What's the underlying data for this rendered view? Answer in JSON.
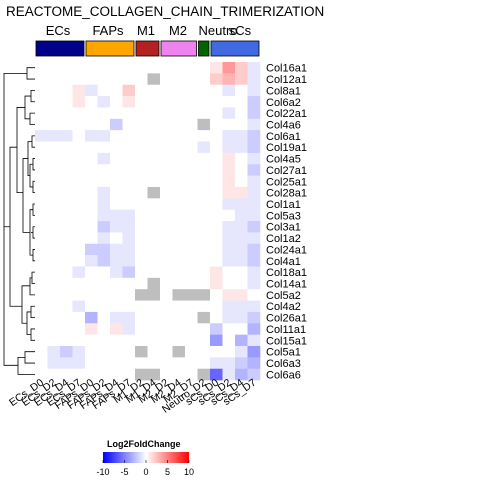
{
  "chart_data": {
    "type": "heatmap",
    "title": "REACTOME_COLLAGEN_CHAIN_TRIMERIZATION",
    "groups": [
      {
        "name": "ECs",
        "color": "#00008B",
        "span": [
          0,
          4
        ]
      },
      {
        "name": "FAPs",
        "color": "#FFA500",
        "span": [
          4,
          8
        ]
      },
      {
        "name": "M1",
        "color": "#B22222",
        "span": [
          8,
          10
        ]
      },
      {
        "name": "M2",
        "color": "#EE82EE",
        "span": [
          10,
          13
        ]
      },
      {
        "name": "Neutro",
        "color": "#006400",
        "span": [
          13,
          14
        ]
      },
      {
        "name": "sCs",
        "color": "#4169E1",
        "span": [
          14,
          18
        ]
      }
    ],
    "columns": [
      "ECs_D0",
      "ECs_D2",
      "ECs_D4",
      "ECs_D7",
      "FAPs_D0",
      "FAPs_D2",
      "FAPs_D4",
      "FAPs_D7",
      "M1_D2",
      "M1_D4",
      "M2_D2",
      "M2_D4",
      "M2_D7",
      "Neutro_D2",
      "sCs_D0",
      "sCs_D2",
      "sCs_D4",
      "sCs_D7"
    ],
    "rows": [
      "Col16a1",
      "Col12a1",
      "Col8a1",
      "Col6a2",
      "Col22a1",
      "Col4a6",
      "Col6a1",
      "Col19a1",
      "Col4a5",
      "Col27a1",
      "Col25a1",
      "Col28a1",
      "Col1a1",
      "Col5a3",
      "Col3a1",
      "Col1a2",
      "Col24a1",
      "Col4a1",
      "Col18a1",
      "Col14a1",
      "Col5a2",
      "Col4a2",
      "Col26a1",
      "Col11a1",
      "Col15a1",
      "Col5a1",
      "Col6a3",
      "Col6a6"
    ],
    "values": [
      [
        0,
        0,
        0,
        0,
        0,
        0,
        0,
        0,
        0,
        0,
        0,
        0,
        0,
        0,
        1,
        4,
        2,
        -1
      ],
      [
        0,
        0,
        0,
        0,
        0,
        0,
        0,
        0,
        0,
        "NA",
        0,
        0,
        0,
        0,
        2,
        3,
        2,
        -1
      ],
      [
        0,
        0,
        0,
        1,
        -1,
        0,
        0,
        2,
        0,
        0,
        0,
        0,
        0,
        0,
        0,
        -1,
        0,
        -1
      ],
      [
        0,
        0,
        0,
        1,
        0,
        -1,
        0,
        1,
        0,
        0,
        0,
        0,
        0,
        0,
        0,
        0,
        0,
        -2
      ],
      [
        0,
        0,
        0,
        0,
        0,
        0,
        0,
        0,
        0,
        0,
        0,
        0,
        0,
        0,
        0,
        -1,
        0,
        -2
      ],
      [
        0,
        0,
        0,
        0,
        0,
        0,
        -2,
        0,
        0,
        0,
        0,
        0,
        0,
        "NA",
        0,
        0,
        0,
        -1
      ],
      [
        -1,
        -1,
        -1,
        0,
        -1,
        -1,
        0,
        0,
        0,
        0,
        0,
        0,
        0,
        0,
        0,
        -1,
        -1,
        -2
      ],
      [
        0,
        0,
        0,
        0,
        0,
        0,
        0,
        0,
        0,
        0,
        0,
        0,
        0,
        -1,
        0,
        -1,
        -1,
        -2
      ],
      [
        0,
        0,
        0,
        0,
        0,
        -1,
        0,
        0,
        0,
        0,
        0,
        0,
        0,
        0,
        0,
        1,
        0,
        -1
      ],
      [
        0,
        0,
        0,
        0,
        0,
        0,
        0,
        0,
        0,
        0,
        0,
        0,
        0,
        0,
        0,
        1,
        0,
        -2
      ],
      [
        0,
        0,
        0,
        0,
        0,
        0,
        0,
        0,
        0,
        0,
        0,
        0,
        0,
        0,
        0,
        1,
        0,
        -1
      ],
      [
        0,
        0,
        0,
        0,
        0,
        -1,
        0,
        0,
        0,
        "NA",
        0,
        0,
        0,
        0,
        0,
        1,
        1,
        -1
      ],
      [
        0,
        0,
        0,
        0,
        0,
        -1,
        0,
        0,
        0,
        0,
        0,
        0,
        0,
        0,
        0,
        -1,
        -1,
        -1
      ],
      [
        0,
        0,
        0,
        0,
        0,
        -1,
        -1,
        -1,
        0,
        0,
        0,
        0,
        0,
        0,
        0,
        0,
        -1,
        -1
      ],
      [
        0,
        0,
        0,
        0,
        0,
        -2,
        -1,
        -1,
        0,
        0,
        0,
        0,
        0,
        0,
        0,
        -1,
        -1,
        -2
      ],
      [
        0,
        0,
        0,
        0,
        0,
        -1,
        0,
        -1,
        0,
        0,
        0,
        0,
        0,
        0,
        0,
        -1,
        -1,
        -1
      ],
      [
        0,
        0,
        0,
        0,
        -2,
        -2,
        -1,
        -1,
        0,
        0,
        0,
        0,
        0,
        0,
        0,
        -1,
        -1,
        -2
      ],
      [
        0,
        0,
        0,
        0,
        -1,
        -2,
        -1,
        -1,
        0,
        0,
        0,
        0,
        0,
        0,
        0,
        -1,
        -1,
        -2
      ],
      [
        0,
        0,
        0,
        -1,
        0,
        0,
        -1,
        -2,
        0,
        0,
        0,
        0,
        0,
        0,
        1,
        0,
        0,
        -1
      ],
      [
        0,
        0,
        0,
        0,
        0,
        0,
        0,
        0,
        0,
        "NA",
        0,
        0,
        0,
        0,
        1,
        0,
        0,
        -1
      ],
      [
        0,
        0,
        0,
        0,
        0,
        0,
        0,
        0,
        "NA",
        "NA",
        0,
        "NA",
        "NA",
        "NA",
        0,
        1,
        1,
        0
      ],
      [
        0,
        0,
        0,
        -1,
        0,
        0,
        0,
        0,
        0,
        0,
        0,
        0,
        0,
        0,
        0,
        -1,
        -1,
        -1
      ],
      [
        0,
        0,
        0,
        0,
        -3,
        0,
        -1,
        -1,
        0,
        0,
        0,
        0,
        0,
        "NA",
        0,
        -1,
        -1,
        -2
      ],
      [
        0,
        0,
        0,
        0,
        1,
        0,
        1,
        -1,
        0,
        0,
        0,
        0,
        0,
        0,
        -2,
        0,
        0,
        -3
      ],
      [
        0,
        0,
        0,
        0,
        0,
        0,
        0,
        0,
        0,
        0,
        0,
        0,
        0,
        0,
        -4,
        0,
        -3,
        -1
      ],
      [
        0,
        -1,
        -2,
        -1,
        0,
        0,
        0,
        0,
        "NA",
        0,
        0,
        "NA",
        0,
        0,
        0,
        0,
        -1,
        -4
      ],
      [
        0,
        -1,
        -1,
        -1,
        0,
        0,
        0,
        0,
        0,
        0,
        0,
        0,
        0,
        0,
        -1,
        -1,
        -2,
        -3
      ],
      [
        0,
        0,
        0,
        0,
        0,
        0,
        0,
        0,
        "NA",
        "NA",
        0,
        0,
        0,
        "NA",
        -6,
        -1,
        -3,
        -2
      ]
    ],
    "legend": {
      "title": "Log2FoldChange",
      "ticks": [
        -10,
        -5,
        0,
        5,
        10
      ],
      "range": [
        -10,
        10
      ],
      "colors": [
        "#0000FF",
        "#FFFFFF",
        "#FF0000"
      ]
    },
    "na_color": "#BEBEBE"
  }
}
